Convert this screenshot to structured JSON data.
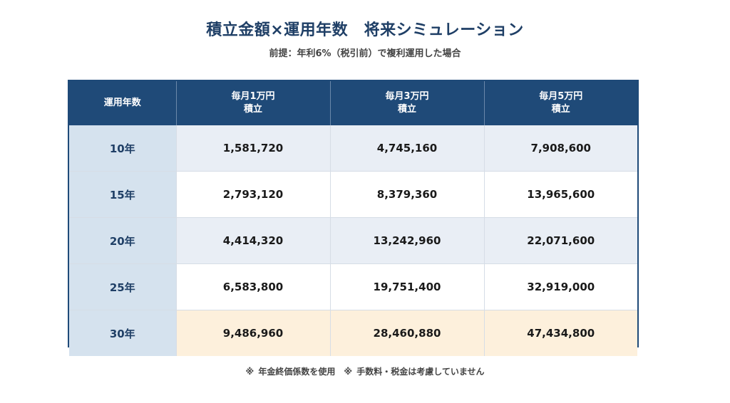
{
  "title": "積立金額×運用年数　将来シミュレーション",
  "subtitle": "前提：年利6%（税引前）で複利運用した場合",
  "table": {
    "headers": [
      {
        "lines": [
          "運用年数"
        ]
      },
      {
        "lines": [
          "毎月1万円",
          "積立"
        ]
      },
      {
        "lines": [
          "毎月3万円",
          "積立"
        ]
      },
      {
        "lines": [
          "毎月5万円",
          "積立"
        ]
      }
    ],
    "rows": [
      {
        "year": "10年",
        "values": [
          "1,581,720",
          "4,745,160",
          "7,908,600"
        ]
      },
      {
        "year": "15年",
        "values": [
          "2,793,120",
          "8,379,360",
          "13,965,600"
        ]
      },
      {
        "year": "20年",
        "values": [
          "4,414,320",
          "13,242,960",
          "22,071,600"
        ]
      },
      {
        "year": "25年",
        "values": [
          "6,583,800",
          "19,751,400",
          "32,919,000"
        ]
      },
      {
        "year": "30年",
        "values": [
          "9,486,960",
          "28,460,880",
          "47,434,800"
        ]
      }
    ]
  },
  "note": "※ 年金終価係数を使用　※ 手数料・税金は考慮していません",
  "colors": {
    "header_bg": "#1f4a78",
    "year_bg": "#d5e2ee",
    "highlight_row": "#fdf0dc",
    "stripe": "#e9eef5"
  }
}
